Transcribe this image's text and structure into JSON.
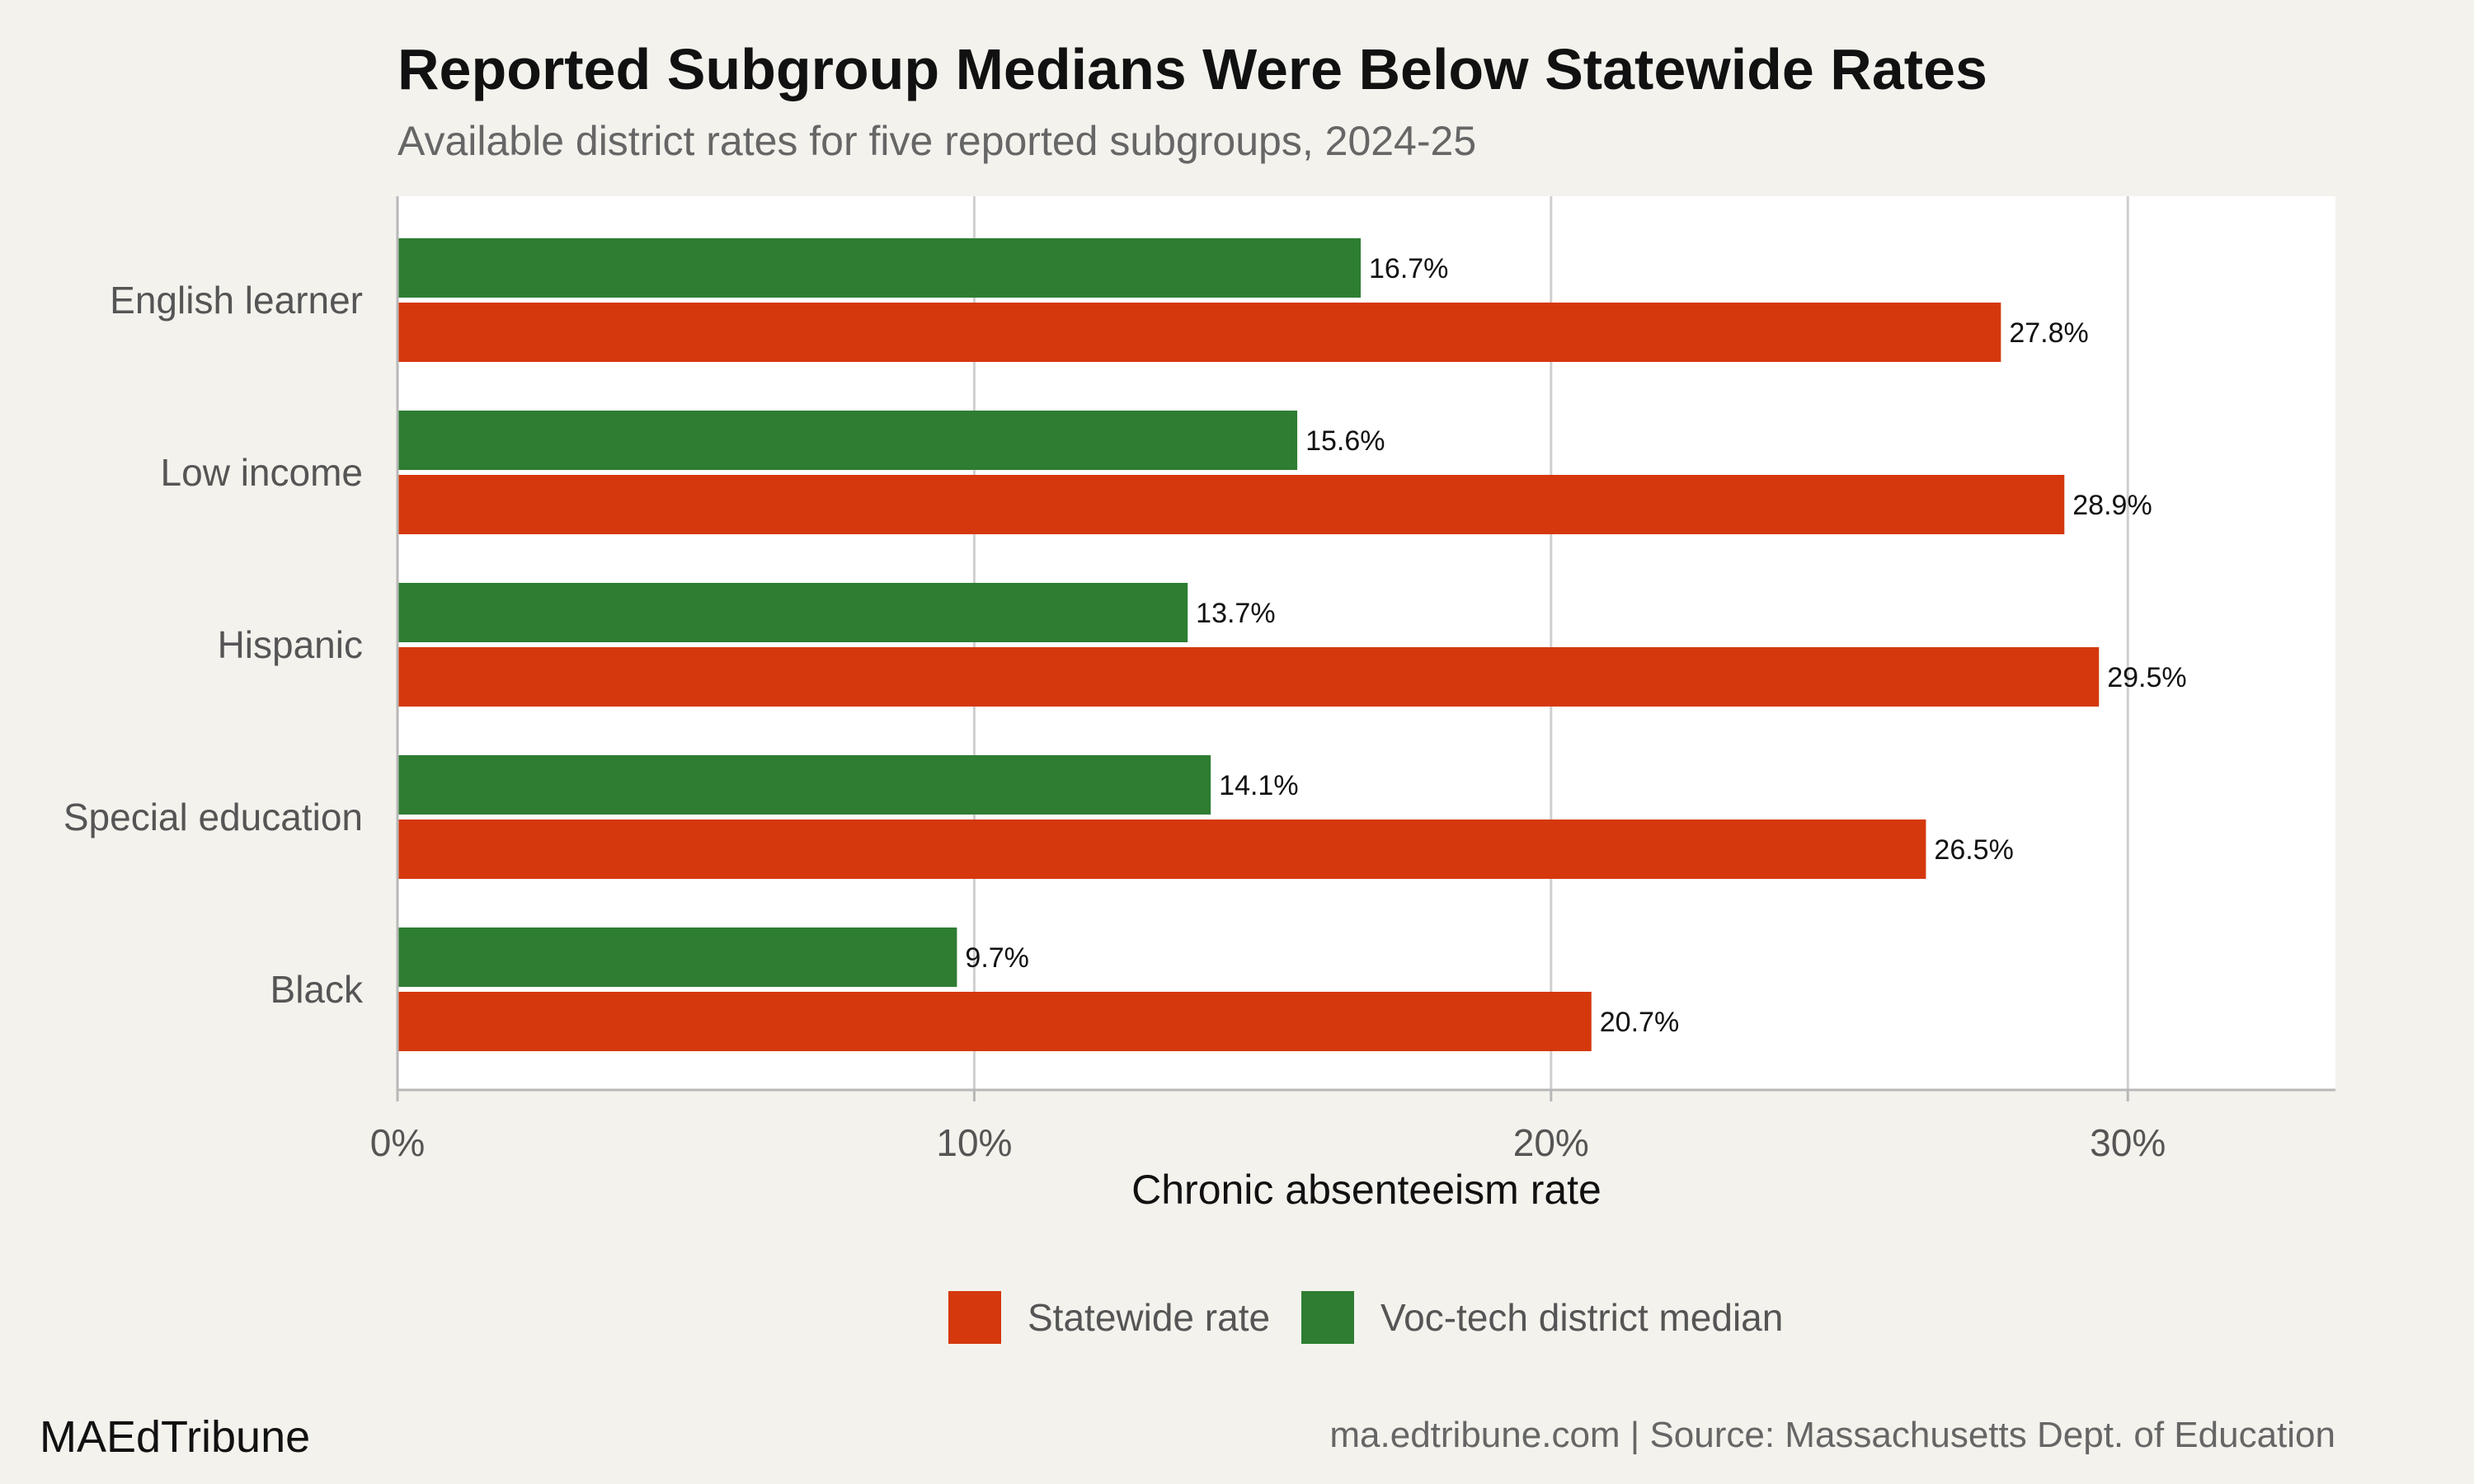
{
  "title": "Reported Subgroup Medians Were Below Statewide Rates",
  "subtitle": "Available district rates for five reported subgroups, 2024-25",
  "brand": "MAEdTribune",
  "source": "ma.edtribune.com | Source: Massachusetts Dept. of Education",
  "colors": {
    "statewide": "#d5380d",
    "median": "#2e7d32",
    "background": "#f4f2ed",
    "panel": "#ffffff"
  },
  "chart_data": {
    "type": "bar",
    "orientation": "horizontal",
    "categories": [
      "English learner",
      "Low income",
      "Hispanic",
      "Special education",
      "Black"
    ],
    "series": [
      {
        "name": "Voc-tech district median",
        "values": [
          16.7,
          15.6,
          13.7,
          14.1,
          9.7
        ],
        "labels": [
          "16.7%",
          "15.6%",
          "13.7%",
          "14.1%",
          "9.7%"
        ]
      },
      {
        "name": "Statewide rate",
        "values": [
          27.8,
          28.9,
          29.5,
          26.5,
          20.7
        ],
        "labels": [
          "27.8%",
          "28.9%",
          "29.5%",
          "26.5%",
          "20.7%"
        ]
      }
    ],
    "xlabel": "Chronic absenteeism rate",
    "ylabel": "",
    "xlim": [
      0,
      33.6
    ],
    "xticks": [
      0,
      10,
      20,
      30
    ],
    "xtick_labels": [
      "0%",
      "10%",
      "20%",
      "30%"
    ],
    "grid": "vertical",
    "legend": {
      "position": "bottom",
      "entries": [
        "Statewide rate",
        "Voc-tech district median"
      ]
    }
  }
}
